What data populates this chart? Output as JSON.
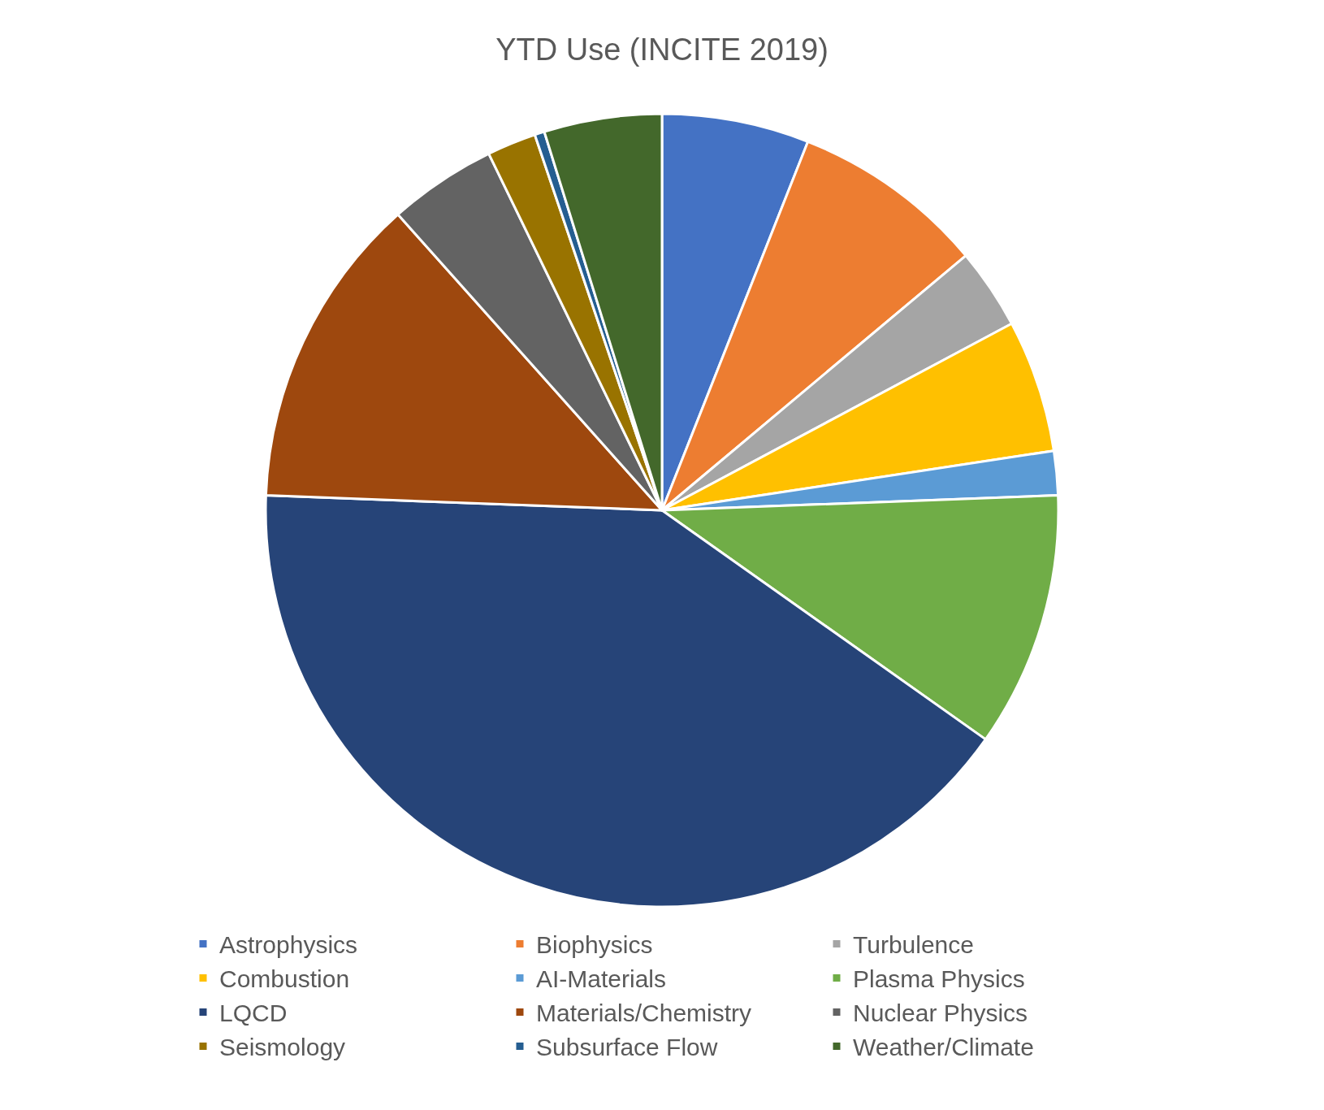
{
  "chart_data": {
    "type": "pie",
    "title": "YTD Use (INCITE 2019)",
    "categories": [
      "Astrophysics",
      "Biophysics",
      "Turbulence",
      "Combustion",
      "AI-Materials",
      "Plasma Physics",
      "LQCD",
      "Materials/Chemistry",
      "Nuclear Physics",
      "Seismology",
      "Subsurface Flow",
      "Weather/Climate"
    ],
    "values": [
      6.0,
      7.9,
      3.3,
      5.4,
      1.8,
      10.4,
      40.8,
      12.8,
      4.4,
      2.0,
      0.4,
      4.8
    ],
    "colors": [
      "#4472c4",
      "#ed7d31",
      "#a5a5a5",
      "#ffc000",
      "#5b9bd5",
      "#70ad47",
      "#264478",
      "#9e480e",
      "#636363",
      "#997300",
      "#255e91",
      "#43682b"
    ],
    "legend": "bottom"
  }
}
